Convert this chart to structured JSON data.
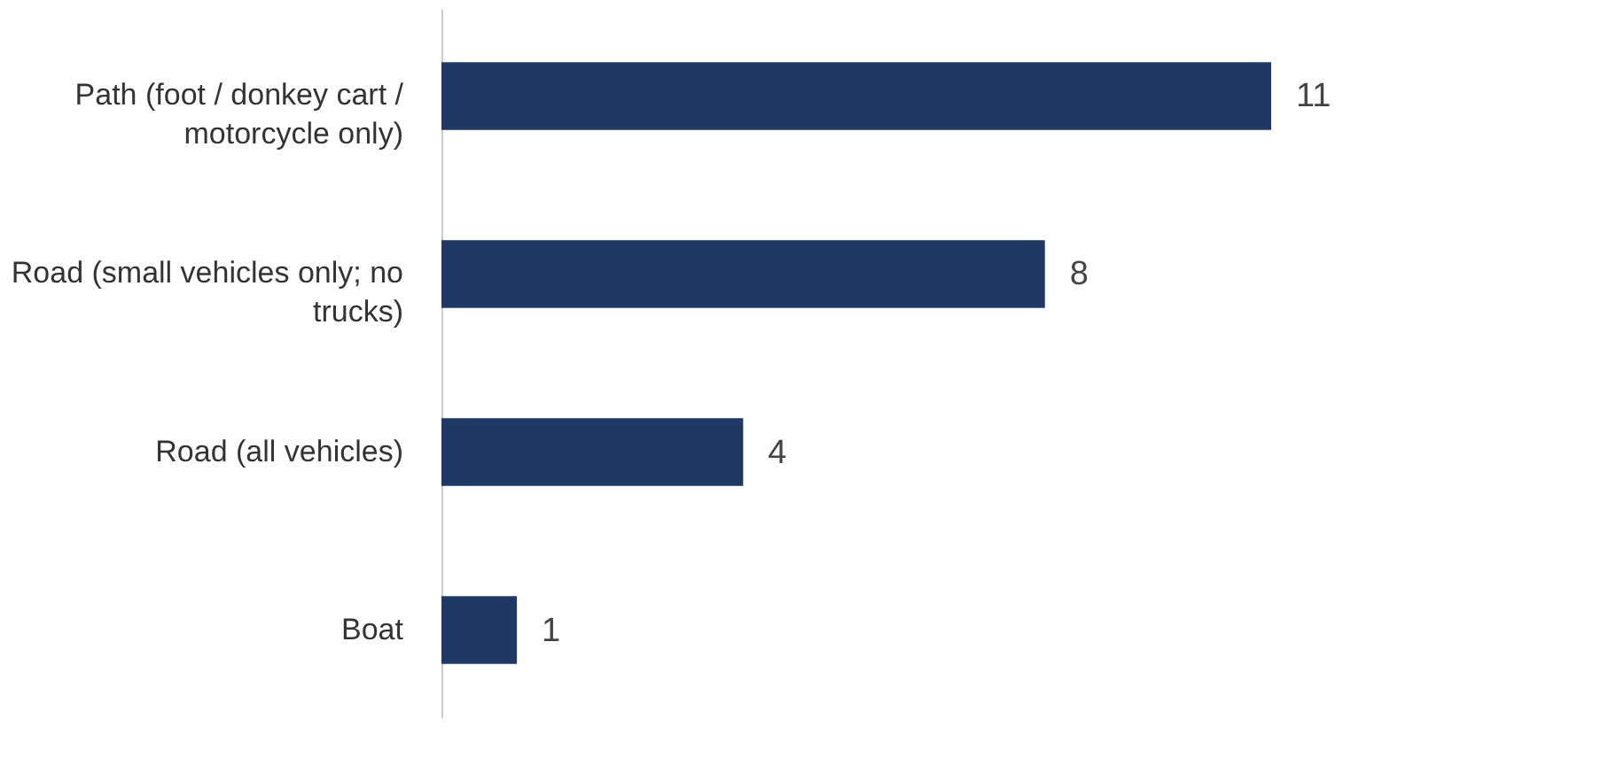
{
  "chart_data": {
    "type": "bar",
    "orientation": "horizontal",
    "categories": [
      "Path (foot / donkey cart / motorcycle only)",
      "Road (small vehicles only; no trucks)",
      "Road (all vehicles)",
      "Boat"
    ],
    "values": [
      11,
      8,
      4,
      1
    ],
    "color": "#1f3864",
    "data_labels": true,
    "grid": false
  }
}
